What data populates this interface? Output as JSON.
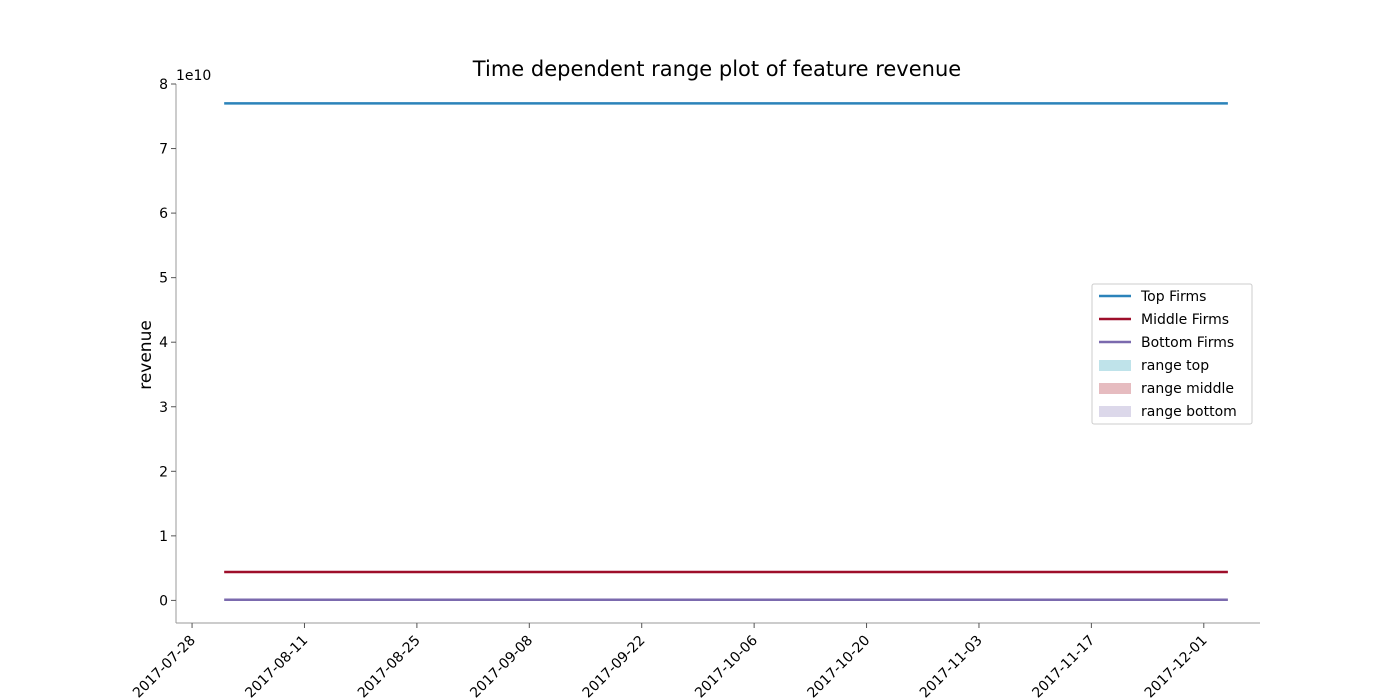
{
  "chart_data": {
    "type": "line",
    "title": "Time dependent range plot of feature revenue",
    "xlabel": "",
    "ylabel": "revenue",
    "y_offset_label": "1e10",
    "x_tick_labels": [
      "2017-07-28",
      "2017-08-11",
      "2017-08-25",
      "2017-09-08",
      "2017-09-22",
      "2017-10-06",
      "2017-10-20",
      "2017-11-03",
      "2017-11-17",
      "2017-12-01"
    ],
    "y_tick_labels": [
      "0",
      "1",
      "2",
      "3",
      "4",
      "5",
      "6",
      "7",
      "8"
    ],
    "x_range": [
      "2017-07-26",
      "2017-12-08"
    ],
    "ylim": [
      -0.35,
      8.0
    ],
    "y_scale": 10000000000,
    "x_start": "2017-08-01",
    "x_end": "2017-12-04",
    "series": [
      {
        "name": "Top Firms",
        "color": "#2b83ba",
        "values": [
          7.7,
          7.7
        ]
      },
      {
        "name": "Middle Firms",
        "color": "#9e0e2a",
        "values": [
          0.44,
          0.44
        ]
      },
      {
        "name": "Bottom Firms",
        "color": "#7b6aae",
        "values": [
          0.01,
          0.01
        ]
      }
    ],
    "ranges": [
      {
        "name": "range top",
        "color": "#bfe3ea"
      },
      {
        "name": "range middle",
        "color": "#e6bcc0"
      },
      {
        "name": "range bottom",
        "color": "#dcd8ea"
      }
    ],
    "legend_position": "center-right",
    "grid": false
  }
}
